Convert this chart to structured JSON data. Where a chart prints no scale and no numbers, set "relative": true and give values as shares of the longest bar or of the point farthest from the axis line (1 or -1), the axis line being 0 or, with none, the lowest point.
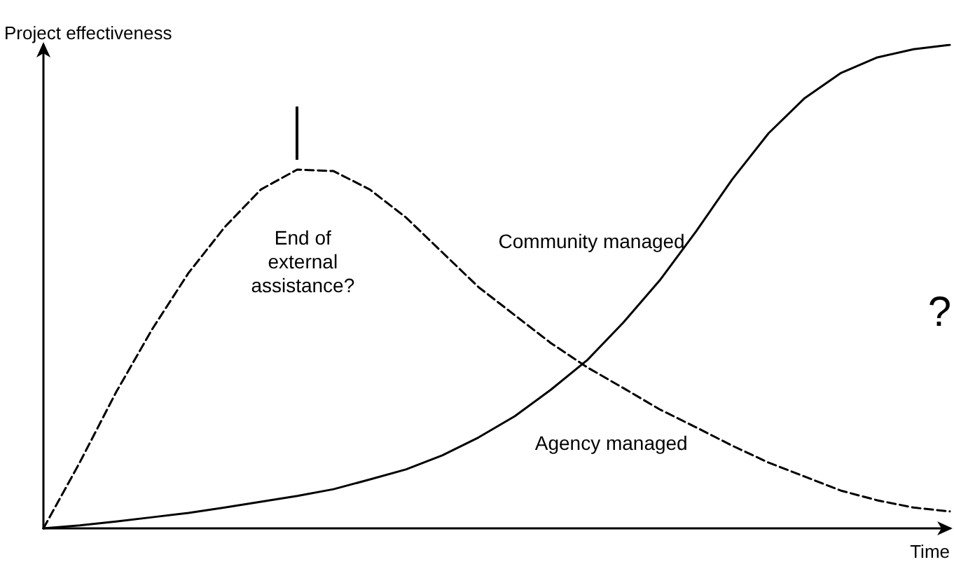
{
  "chart_data": {
    "type": "line",
    "relative": true,
    "ylabel": "Project effectiveness",
    "xlabel": "Time",
    "legend": false,
    "grid": false,
    "marker": "none",
    "categories": [
      null,
      null,
      null,
      null,
      null,
      null,
      null,
      null,
      null,
      null,
      null,
      null,
      null,
      null,
      null,
      null,
      null,
      null,
      null,
      null,
      null,
      null,
      null,
      null,
      null,
      null
    ],
    "series": [
      {
        "name": "Agency managed",
        "color": "#000000",
        "line_style": "dashed",
        "values": [
          0,
          0.136,
          0.281,
          0.412,
          0.528,
          0.623,
          0.701,
          0.742,
          0.739,
          0.701,
          0.643,
          0.571,
          0.499,
          0.441,
          0.383,
          0.333,
          0.29,
          0.246,
          0.209,
          0.171,
          0.136,
          0.107,
          0.078,
          0.058,
          0.043,
          0.035
        ]
      },
      {
        "name": "Community managed",
        "color": "#000000",
        "line_style": "solid",
        "values": [
          0,
          0.006,
          0.014,
          0.023,
          0.032,
          0.043,
          0.055,
          0.067,
          0.081,
          0.101,
          0.122,
          0.151,
          0.188,
          0.232,
          0.287,
          0.348,
          0.426,
          0.513,
          0.614,
          0.722,
          0.817,
          0.89,
          0.942,
          0.974,
          0.991,
          1
        ]
      }
    ],
    "annotations": [
      "End of\nexternal\nassistance?",
      "?"
    ]
  }
}
